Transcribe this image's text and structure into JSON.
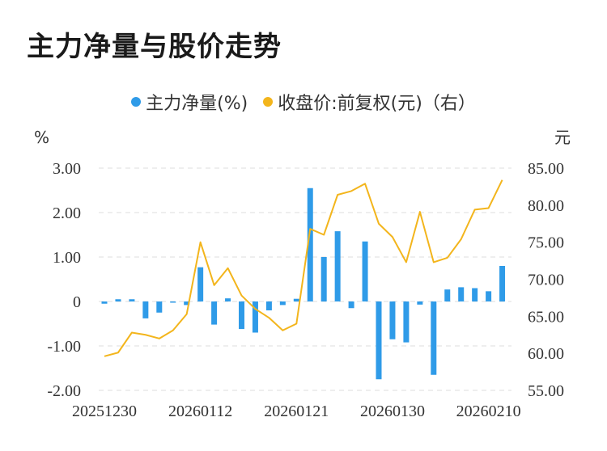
{
  "title": "主力净量与股价走势",
  "chart_data": {
    "type": "bar+line",
    "legend": [
      {
        "name": "主力净量(%)",
        "color": "#2f9be8"
      },
      {
        "name": "收盘价:前复权(元)（右）",
        "color": "#f3b51c"
      }
    ],
    "left_unit": "%",
    "right_unit": "元",
    "left_ticks": [
      "3.00",
      "2.00",
      "1.00",
      "0",
      "-1.00",
      "-2.00"
    ],
    "right_ticks": [
      "85.00",
      "80.00",
      "75.00",
      "70.00",
      "65.00",
      "60.00",
      "55.00"
    ],
    "left_range": [
      -2,
      3
    ],
    "right_range": [
      55,
      85
    ],
    "x_tick_labels": [
      "20251230",
      "20260112",
      "20260121",
      "20260130",
      "20260210"
    ],
    "x_tick_index": [
      0,
      7,
      14,
      21,
      28
    ],
    "bar_color": "#2f9be8",
    "line_color": "#f3b51c",
    "bars": [
      -0.05,
      0.05,
      0.05,
      -0.38,
      -0.25,
      -0.02,
      -0.08,
      0.77,
      -0.52,
      0.07,
      -0.62,
      -0.7,
      -0.2,
      -0.08,
      0.06,
      2.55,
      1.0,
      1.58,
      -0.15,
      1.35,
      -1.75,
      -0.85,
      -0.92,
      -0.07,
      -1.65,
      0.27,
      0.32,
      0.3,
      0.23,
      0.8
    ],
    "prices": [
      59.6,
      60.1,
      62.8,
      62.5,
      62.0,
      63.1,
      65.3,
      75.0,
      69.2,
      71.5,
      67.8,
      66.0,
      64.8,
      63.1,
      64.0,
      76.8,
      76.0,
      81.4,
      81.9,
      82.9,
      77.5,
      75.7,
      72.3,
      79.1,
      72.3,
      72.9,
      75.4,
      79.4,
      79.6,
      83.4
    ]
  }
}
